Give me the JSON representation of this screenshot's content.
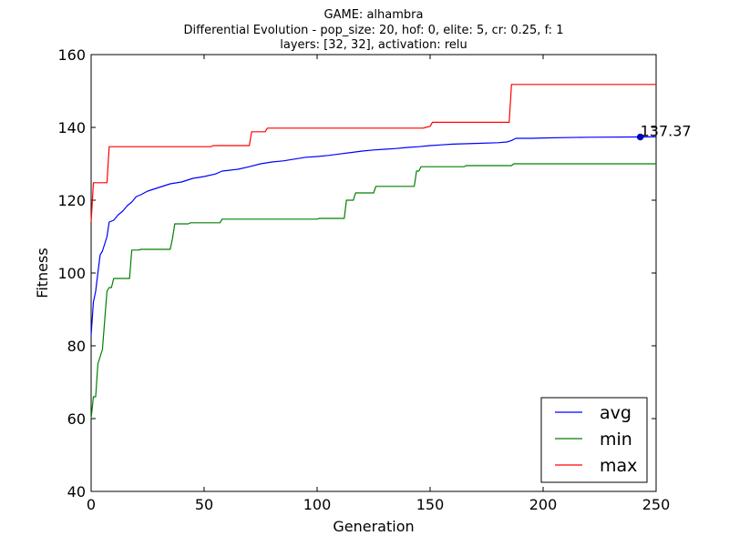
{
  "chart_data": {
    "type": "line",
    "title_lines": [
      "GAME: alhambra",
      "Differential Evolution - pop_size: 20, hof: 0, elite: 5, cr: 0.25, f: 1",
      "layers: [32, 32], activation: relu"
    ],
    "xlabel": "Generation",
    "ylabel": "Fitness",
    "xlim": [
      0,
      250
    ],
    "ylim": [
      40,
      160
    ],
    "x_ticks": [
      0,
      50,
      100,
      150,
      200,
      250
    ],
    "y_ticks": [
      40,
      60,
      80,
      100,
      120,
      140,
      160
    ],
    "grid": false,
    "legend_position": "lower-right",
    "annotation": {
      "text": "137.37",
      "x": 243,
      "y": 137.37
    },
    "series": [
      {
        "name": "avg",
        "color": "#0000ff",
        "points": [
          [
            0,
            83
          ],
          [
            1,
            92
          ],
          [
            2,
            95
          ],
          [
            3,
            100
          ],
          [
            4,
            105
          ],
          [
            5,
            106
          ],
          [
            6,
            108
          ],
          [
            7,
            110
          ],
          [
            8,
            114
          ],
          [
            10,
            114.5
          ],
          [
            12,
            116
          ],
          [
            14,
            117
          ],
          [
            16,
            118.5
          ],
          [
            18,
            119.5
          ],
          [
            20,
            121
          ],
          [
            22,
            121.5
          ],
          [
            25,
            122.5
          ],
          [
            30,
            123.5
          ],
          [
            35,
            124.5
          ],
          [
            40,
            125
          ],
          [
            45,
            126
          ],
          [
            50,
            126.5
          ],
          [
            55,
            127.2
          ],
          [
            58,
            128
          ],
          [
            65,
            128.5
          ],
          [
            70,
            129.2
          ],
          [
            75,
            130
          ],
          [
            80,
            130.5
          ],
          [
            85,
            130.8
          ],
          [
            90,
            131.3
          ],
          [
            95,
            131.8
          ],
          [
            100,
            132
          ],
          [
            105,
            132.3
          ],
          [
            110,
            132.7
          ],
          [
            115,
            133.1
          ],
          [
            120,
            133.5
          ],
          [
            125,
            133.8
          ],
          [
            130,
            134
          ],
          [
            135,
            134.2
          ],
          [
            140,
            134.5
          ],
          [
            145,
            134.7
          ],
          [
            150,
            135
          ],
          [
            155,
            135.2
          ],
          [
            160,
            135.4
          ],
          [
            165,
            135.5
          ],
          [
            170,
            135.6
          ],
          [
            180,
            135.8
          ],
          [
            184,
            136
          ],
          [
            186,
            136.4
          ],
          [
            188,
            137
          ],
          [
            195,
            137
          ],
          [
            200,
            137.1
          ],
          [
            210,
            137.2
          ],
          [
            220,
            137.3
          ],
          [
            243,
            137.37
          ],
          [
            250,
            137.4
          ]
        ]
      },
      {
        "name": "min",
        "color": "#008000",
        "points": [
          [
            0,
            60
          ],
          [
            1,
            66
          ],
          [
            2,
            66
          ],
          [
            3,
            75
          ],
          [
            4,
            77
          ],
          [
            5,
            79
          ],
          [
            6,
            87
          ],
          [
            7,
            95
          ],
          [
            8,
            96
          ],
          [
            9,
            96
          ],
          [
            10,
            98.5
          ],
          [
            17,
            98.5
          ],
          [
            18,
            106.3
          ],
          [
            21,
            106.3
          ],
          [
            22,
            106.5
          ],
          [
            35,
            106.5
          ],
          [
            36,
            109.5
          ],
          [
            37,
            113.5
          ],
          [
            43,
            113.5
          ],
          [
            44,
            113.8
          ],
          [
            57,
            113.8
          ],
          [
            58,
            114.8
          ],
          [
            100,
            114.8
          ],
          [
            101,
            115
          ],
          [
            112,
            115
          ],
          [
            113,
            120
          ],
          [
            116,
            120
          ],
          [
            117,
            122
          ],
          [
            125,
            122
          ],
          [
            126,
            123.8
          ],
          [
            143,
            123.8
          ],
          [
            144,
            128
          ],
          [
            145,
            128
          ],
          [
            146,
            129.2
          ],
          [
            165,
            129.2
          ],
          [
            166,
            129.5
          ],
          [
            186,
            129.5
          ],
          [
            187,
            130
          ],
          [
            250,
            130
          ]
        ]
      },
      {
        "name": "max",
        "color": "#ff0000",
        "points": [
          [
            0,
            114
          ],
          [
            1,
            124.8
          ],
          [
            7,
            124.8
          ],
          [
            8,
            134.7
          ],
          [
            53,
            134.7
          ],
          [
            54,
            135
          ],
          [
            70,
            135
          ],
          [
            71,
            138.8
          ],
          [
            77,
            138.8
          ],
          [
            78,
            139.8
          ],
          [
            147,
            139.8
          ],
          [
            148,
            140
          ],
          [
            150,
            140.3
          ],
          [
            151,
            141.4
          ],
          [
            185,
            141.4
          ],
          [
            186,
            151.8
          ],
          [
            250,
            151.8
          ]
        ]
      }
    ]
  }
}
